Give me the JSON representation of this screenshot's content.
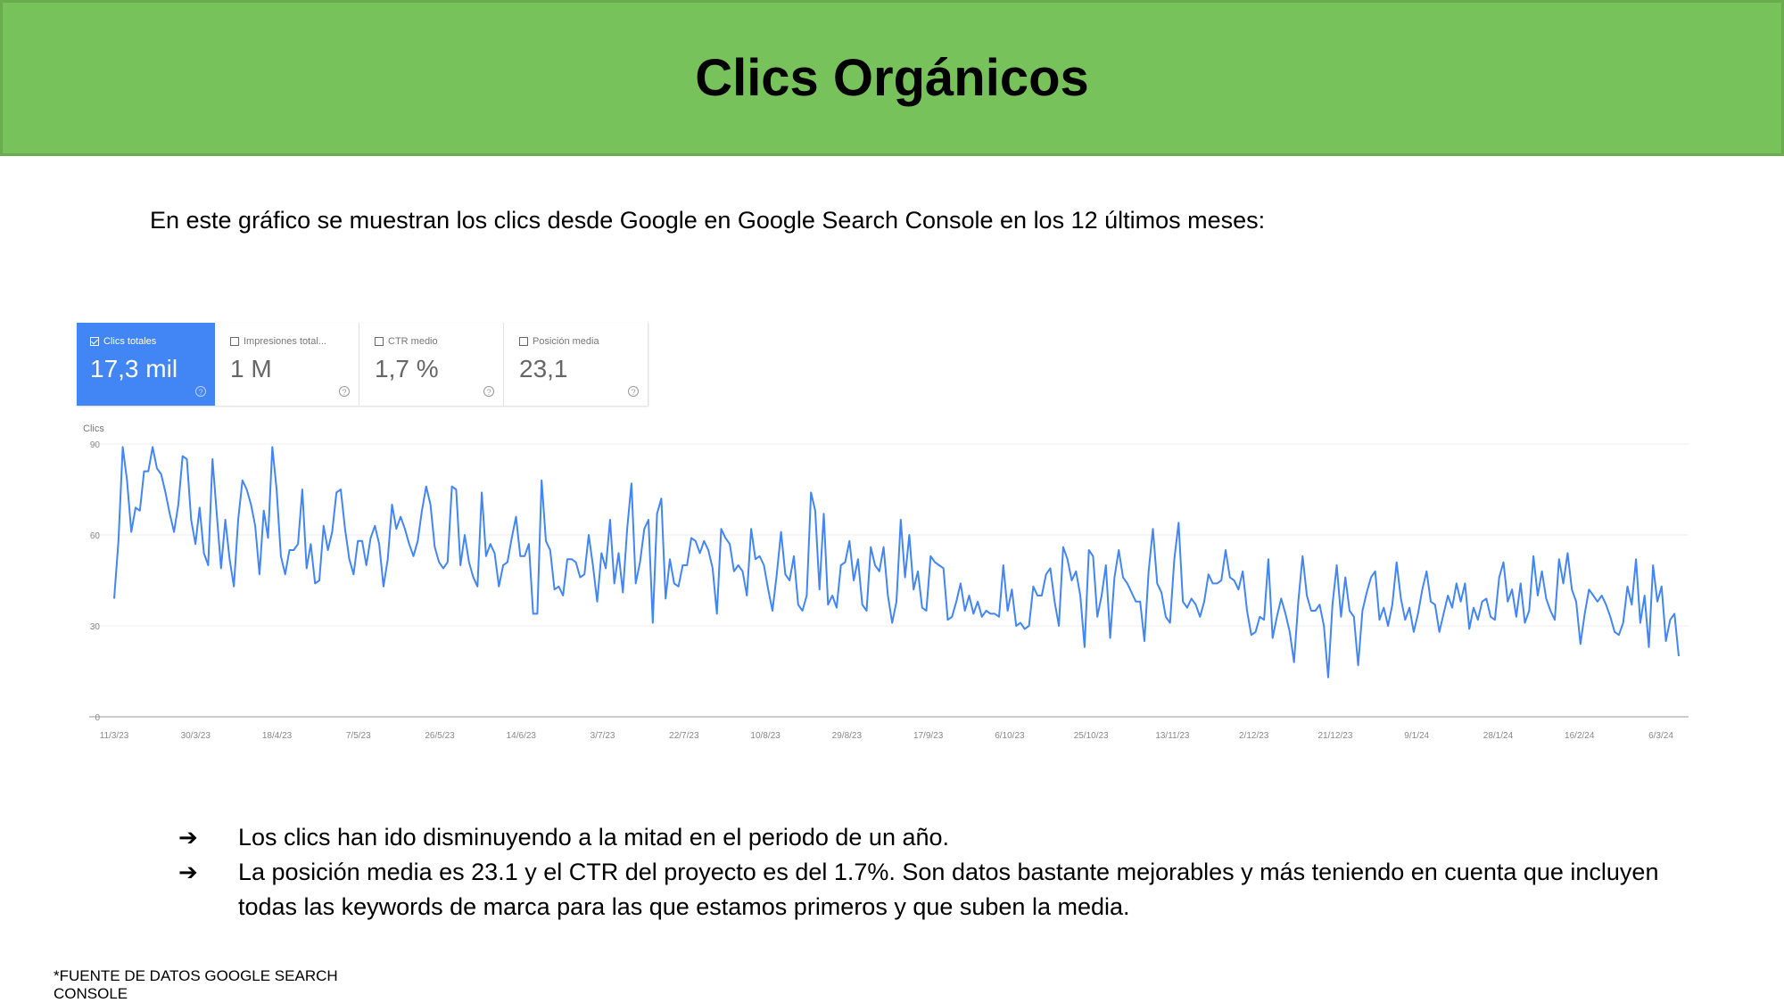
{
  "header": {
    "title": "Clics Orgánicos",
    "background_color": "#78c25b"
  },
  "intro": "En este gráfico se muestran los clics desde Google en Google Search Console en los 12 últimos meses:",
  "metrics": [
    {
      "label": "Clics totales",
      "value": "17,3 mil",
      "checked": true,
      "help_icon": "question-circle-icon"
    },
    {
      "label": "Impresiones total...",
      "value": "1 M",
      "checked": false,
      "help_icon": "question-circle-icon"
    },
    {
      "label": "CTR medio",
      "value": "1,7 %",
      "checked": false,
      "help_icon": "question-circle-icon"
    },
    {
      "label": "Posición media",
      "value": "23,1",
      "checked": false,
      "help_icon": "question-circle-icon"
    }
  ],
  "help_glyph": "?",
  "chart_data": {
    "type": "line",
    "ylabel": "Clics",
    "ylim": [
      0,
      90
    ],
    "yticks": [
      "0",
      "30",
      "60",
      "90"
    ],
    "xticks": [
      "11/3/23",
      "30/3/23",
      "18/4/23",
      "7/5/23",
      "26/5/23",
      "14/6/23",
      "3/7/23",
      "22/7/23",
      "10/8/23",
      "29/8/23",
      "17/9/23",
      "6/10/23",
      "25/10/23",
      "13/11/23",
      "2/12/23",
      "21/12/23",
      "9/1/24",
      "28/1/24",
      "16/2/24",
      "6/3/24"
    ],
    "grid": true,
    "color": "#4285f4",
    "series": [
      {
        "values": [
          39,
          58,
          89,
          78,
          61,
          69,
          68,
          81,
          81,
          89,
          82,
          80,
          74,
          67,
          61,
          70,
          86,
          85,
          65,
          57,
          69,
          54,
          50,
          85,
          67,
          49,
          65,
          52,
          43,
          65,
          78,
          75,
          70,
          63,
          47,
          68,
          59,
          89,
          75,
          53,
          47,
          55,
          55,
          57,
          75,
          49,
          57,
          44,
          45,
          63,
          55,
          61,
          74,
          75,
          62,
          52,
          47,
          58,
          58,
          50,
          59,
          63,
          57,
          43,
          52,
          70,
          62,
          66,
          62,
          57,
          53,
          58,
          68,
          76,
          70,
          56,
          51,
          49,
          51,
          76,
          75,
          50,
          60,
          51,
          46,
          43,
          74,
          53,
          57,
          54,
          43,
          50,
          51,
          59,
          66,
          53,
          53,
          57,
          34,
          34,
          78,
          58,
          55,
          42,
          43,
          40,
          52,
          52,
          51,
          46,
          47,
          60,
          50,
          38,
          54,
          49,
          65,
          44,
          54,
          41,
          62,
          77,
          44,
          51,
          62,
          65,
          31,
          67,
          72,
          39,
          52,
          44,
          43,
          50,
          50,
          59,
          58,
          54,
          58,
          55,
          49,
          34,
          62,
          59,
          57,
          48,
          50,
          48,
          40,
          62,
          52,
          53,
          50,
          42,
          35,
          47,
          61,
          47,
          45,
          53,
          37,
          35,
          40,
          74,
          68,
          42,
          67,
          37,
          40,
          36,
          50,
          51,
          58,
          45,
          52,
          37,
          35,
          56,
          50,
          48,
          56,
          40,
          31,
          38,
          65,
          46,
          60,
          42,
          48,
          36,
          35,
          53,
          51,
          50,
          49,
          32,
          33,
          38,
          44,
          35,
          40,
          34,
          38,
          33,
          35,
          34,
          34,
          33,
          50,
          35,
          42,
          30,
          31,
          29,
          30,
          43,
          40,
          40,
          47,
          49,
          38,
          30,
          56,
          52,
          45,
          48,
          40,
          23,
          55,
          53,
          33,
          40,
          50,
          26,
          46,
          55,
          46,
          44,
          41,
          38,
          38,
          25,
          48,
          62,
          44,
          41,
          33,
          31,
          52,
          64,
          38,
          36,
          39,
          37,
          33,
          38,
          47,
          44,
          44,
          45,
          55,
          46,
          45,
          42,
          48,
          35,
          27,
          28,
          33,
          32,
          52,
          26,
          33,
          39,
          34,
          28,
          18,
          38,
          53,
          40,
          35,
          35,
          37,
          30,
          13,
          37,
          50,
          33,
          46,
          35,
          33,
          17,
          35,
          41,
          46,
          48,
          32,
          36,
          30,
          37,
          51,
          39,
          32,
          36,
          28,
          34,
          42,
          48,
          38,
          37,
          28,
          34,
          40,
          36,
          44,
          38,
          44,
          29,
          36,
          32,
          38,
          39,
          33,
          32,
          46,
          51,
          38,
          42,
          33,
          44,
          31,
          35,
          53,
          40,
          48,
          39,
          35,
          32,
          52,
          44,
          54,
          42,
          38,
          24,
          34,
          42,
          40,
          38,
          40,
          37,
          33,
          28,
          27,
          31,
          43,
          37,
          52,
          31,
          40,
          23,
          50,
          38,
          43,
          25,
          32,
          34,
          20
        ]
      }
    ]
  },
  "bullets": [
    {
      "icon": "arrow-right-icon",
      "glyph": "➔",
      "text": "Los clics han ido disminuyendo a la mitad en el periodo de un año."
    },
    {
      "icon": "arrow-right-icon",
      "glyph": "➔",
      "text": "La posición media es 23.1 y el CTR del proyecto es del 1.7%. Son datos bastante mejorables y más teniendo en cuenta que incluyen todas las keywords de marca para las que estamos primeros y que suben la media."
    }
  ],
  "footer": "*FUENTE DE DATOS GOOGLE SEARCH CONSOLE"
}
